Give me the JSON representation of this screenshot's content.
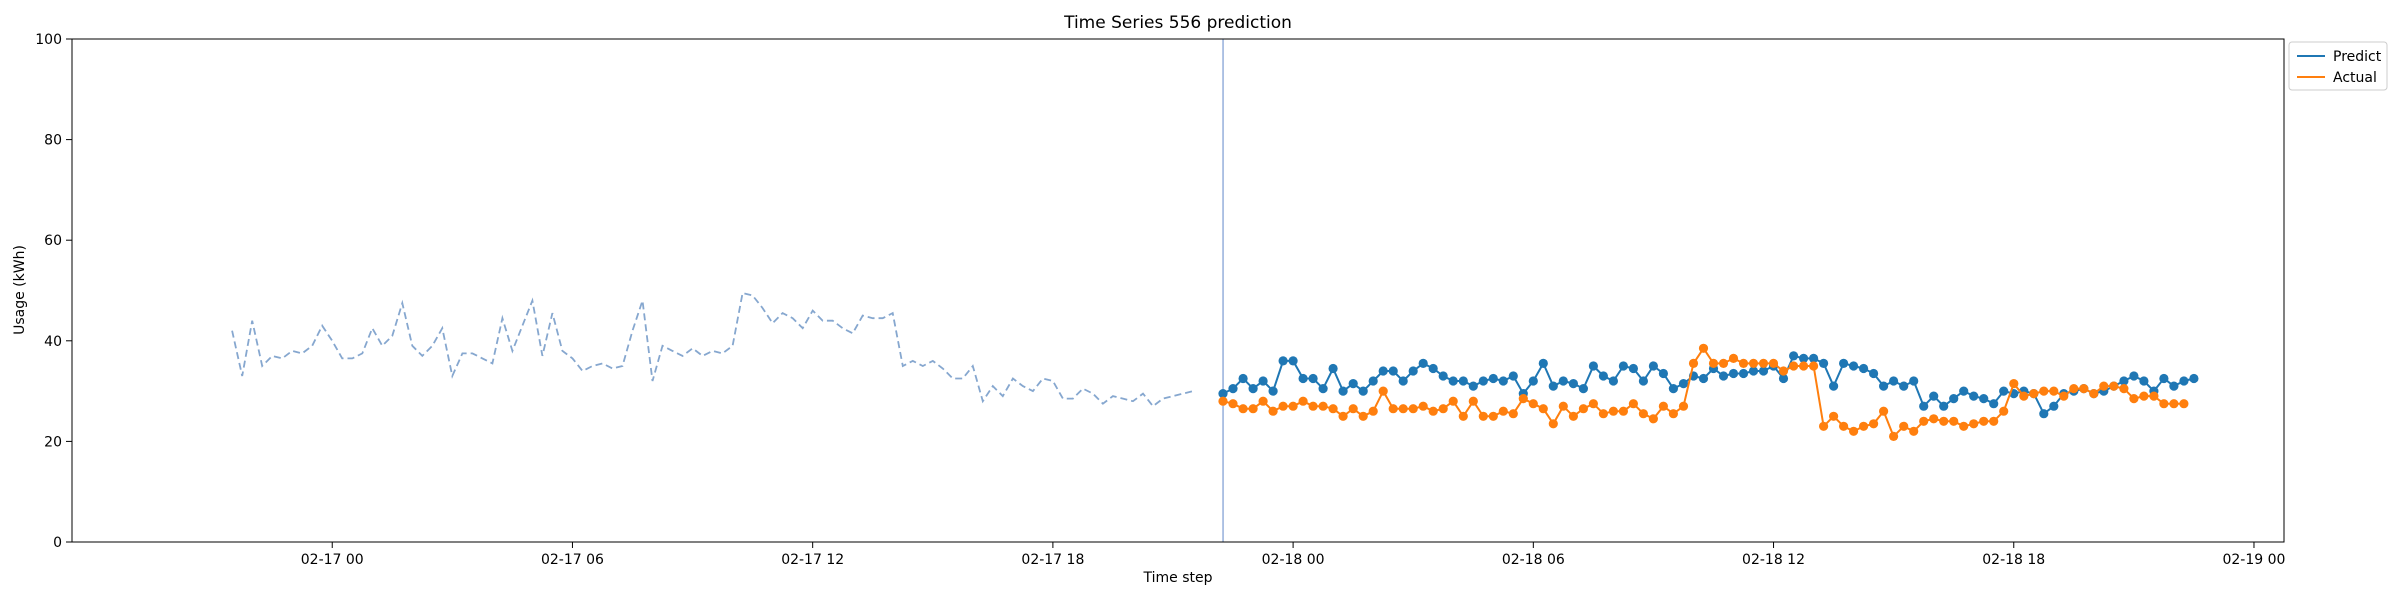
{
  "chart_data": {
    "type": "line",
    "title": "Time Series 556 prediction",
    "xlabel": "Time step",
    "ylabel": "Usage (kWh)",
    "ylim": [
      0,
      100
    ],
    "yticks": [
      0,
      20,
      40,
      60,
      80,
      100
    ],
    "xlim": [
      "2017-02-16 17:30",
      "2017-02-19 00:45"
    ],
    "xticks": [
      {
        "t": "2017-02-17 00:00",
        "label": "02-17 00"
      },
      {
        "t": "2017-02-17 06:00",
        "label": "02-17 06"
      },
      {
        "t": "2017-02-17 12:00",
        "label": "02-17 12"
      },
      {
        "t": "2017-02-17 18:00",
        "label": "02-17 18"
      },
      {
        "t": "2017-02-18 00:00",
        "label": "02-18 00"
      },
      {
        "t": "2017-02-18 06:00",
        "label": "02-18 06"
      },
      {
        "t": "2017-02-18 12:00",
        "label": "02-18 12"
      },
      {
        "t": "2017-02-18 18:00",
        "label": "02-18 18"
      },
      {
        "t": "2017-02-19 00:00",
        "label": "02-19 00"
      }
    ],
    "forecast_start": "2017-02-17 22:15",
    "history": {
      "start": "2017-02-16 21:30",
      "step_minutes": 15,
      "values": [
        42,
        33,
        44,
        35,
        37,
        36.5,
        38,
        37.5,
        39,
        43,
        40,
        36.5,
        36.5,
        37.5,
        42.5,
        39,
        41,
        47.5,
        39,
        37,
        39,
        42.5,
        33,
        37.5,
        37.5,
        36.5,
        35.5,
        44.5,
        38,
        43,
        48,
        37,
        45.5,
        38,
        36.5,
        34,
        35,
        35.5,
        34.5,
        35,
        42,
        48,
        32,
        39,
        38,
        37,
        38.5,
        37,
        38,
        37.5,
        39,
        49.5,
        49,
        46.5,
        43.5,
        45.5,
        44.5,
        42.5,
        46,
        44,
        44,
        42.5,
        41.5,
        45,
        44.5,
        44.5,
        45.5,
        35,
        36,
        35,
        36,
        34.5,
        32.5,
        32.5,
        35,
        28,
        31,
        29,
        32.5,
        31,
        30,
        32.5,
        32,
        28.5,
        28.5,
        30.5,
        29.5,
        27.5,
        29,
        28.5,
        28,
        29.5,
        27,
        28.5,
        29,
        29.5,
        30
      ]
    },
    "series": [
      {
        "name": "Predict",
        "color": "#1f77b4",
        "start": "2017-02-17 22:15",
        "step_minutes": 15,
        "values": [
          29.5,
          30.5,
          32.5,
          30.5,
          32,
          30,
          36,
          36,
          32.5,
          32.5,
          30.5,
          34.5,
          30,
          31.5,
          30,
          32,
          34,
          34,
          32,
          34,
          35.5,
          34.5,
          33,
          32,
          32,
          31,
          32,
          32.5,
          32,
          33,
          29.5,
          32,
          35.5,
          31,
          32,
          31.5,
          30.5,
          35,
          33,
          32,
          35,
          34.5,
          32,
          35,
          33.5,
          30.5,
          31.5,
          33,
          32.5,
          34.5,
          33,
          33.5,
          33.5,
          34,
          34,
          35,
          32.5,
          37,
          36.5,
          36.5,
          35.5,
          31,
          35.5,
          35,
          34.5,
          33.5,
          31,
          32,
          31,
          32,
          27,
          29,
          27,
          28.5,
          30,
          29,
          28.5,
          27.5,
          30,
          29.5,
          30,
          29.5,
          25.5,
          27,
          29.5,
          30,
          30.5,
          29.5,
          30,
          31,
          32,
          33,
          32,
          30,
          32.5,
          31,
          32,
          32.5
        ]
      },
      {
        "name": "Actual",
        "color": "#ff7f0e",
        "start": "2017-02-17 22:15",
        "step_minutes": 15,
        "values": [
          28,
          27.5,
          26.5,
          26.5,
          28,
          26,
          27,
          27,
          28,
          27,
          27,
          26.5,
          25,
          26.5,
          25,
          26,
          30,
          26.5,
          26.5,
          26.5,
          27,
          26,
          26.5,
          28,
          25,
          28,
          25,
          25,
          26,
          25.5,
          28.5,
          27.5,
          26.5,
          23.5,
          27,
          25,
          26.5,
          27.5,
          25.5,
          26,
          26,
          27.5,
          25.5,
          24.5,
          27,
          25.5,
          27,
          35.5,
          38.5,
          35.5,
          35.5,
          36.5,
          35.5,
          35.5,
          35.5,
          35.5,
          34,
          35,
          35,
          35,
          23,
          25,
          23,
          22,
          23,
          23.5,
          26,
          21,
          23,
          22,
          24,
          24.5,
          24,
          24,
          23,
          23.5,
          24,
          24,
          26,
          31.5,
          29,
          29.5,
          30,
          30,
          29,
          30.5,
          30.5,
          29.5,
          31,
          31,
          30.5,
          28.5,
          29,
          29,
          27.5,
          27.5,
          27.5
        ]
      }
    ],
    "legend": {
      "position": "top-right-outside",
      "entries": [
        "Predict",
        "Actual"
      ]
    },
    "grid": false
  }
}
